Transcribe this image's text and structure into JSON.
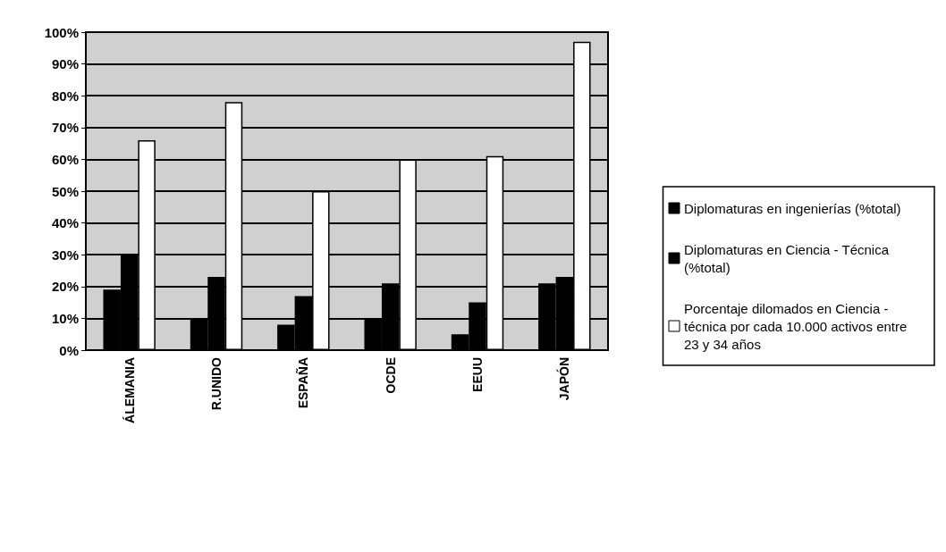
{
  "chart_data": {
    "type": "bar",
    "categories": [
      "ÁLEMANIA",
      "R.UNIDO",
      "ESPAÑA",
      "OCDE",
      "EEUU",
      "JAPÓN"
    ],
    "series": [
      {
        "name": "Diplomaturas en ingenierías (%total)",
        "color": "#000000",
        "values": [
          19,
          10,
          8,
          10,
          5,
          21
        ]
      },
      {
        "name": "Diplomaturas en Ciencia - Técnica (%total)",
        "color": "#000000",
        "values": [
          30,
          23,
          17,
          21,
          15,
          23
        ]
      },
      {
        "name": "Porcentaje dilomados en Ciencia - técnica por cada 10.000 activos entre 23 y 34 años",
        "color": "#ffffff",
        "values": [
          66,
          78,
          50,
          60,
          61,
          97
        ]
      }
    ],
    "ylim": [
      0,
      100
    ],
    "yticks": [
      {
        "value": 0,
        "label": "0%"
      },
      {
        "value": 10,
        "label": "10%"
      },
      {
        "value": 20,
        "label": "20%"
      },
      {
        "value": 30,
        "label": "30%"
      },
      {
        "value": 40,
        "label": "40%"
      },
      {
        "value": 50,
        "label": "50%"
      },
      {
        "value": 60,
        "label": "60%"
      },
      {
        "value": 70,
        "label": "70%"
      },
      {
        "value": 80,
        "label": "80%"
      },
      {
        "value": 90,
        "label": "90%"
      },
      {
        "value": 100,
        "label": "100%"
      }
    ],
    "grid": "y",
    "legend": "right"
  }
}
